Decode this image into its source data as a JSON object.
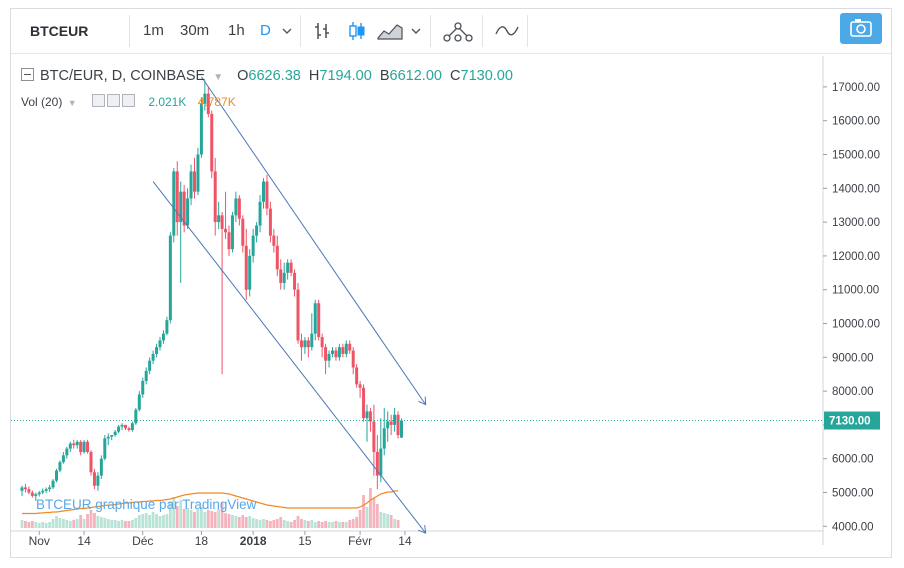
{
  "toolbar": {
    "symbol": "BTCEUR",
    "intervals": [
      "1m",
      "30m",
      "1h",
      "D"
    ],
    "active_interval": "D",
    "icons": [
      "chevron-down-icon",
      "bar-style-icon",
      "candle-style-icon",
      "area-style-icon",
      "chevron-down-icon",
      "indicators-icon",
      "compare-icon",
      "camera-icon"
    ]
  },
  "legend": {
    "title": "BTC/EUR, D, COINBASE",
    "open_label": "O",
    "open": "6626.38",
    "high_label": "H",
    "high": "7194.00",
    "low_label": "B",
    "low": "6612.00",
    "close_label": "C",
    "close": "7130.00"
  },
  "volume_legend": {
    "label": "Vol (20)",
    "v1": "2.021K",
    "v2": "4.787K",
    "v1_color": "#26a69a",
    "v2_color": "#f08a24"
  },
  "watermark": "BTCEUR graphique par TradingView",
  "colors": {
    "up": "#26a69a",
    "down": "#ef5366",
    "up_vol": "#b9e3d6",
    "down_vol": "#f6b3bd",
    "ma": "#f08a24",
    "channel": "#4a78b8",
    "price_tag": "#26a69a",
    "accent": "#2196f3"
  },
  "chart_data": {
    "type": "candlestick",
    "symbol": "BTC/EUR",
    "exchange": "COINBASE",
    "interval": "D",
    "y_axis": {
      "ticks": [
        4000,
        5000,
        6000,
        7000,
        8000,
        9000,
        10000,
        11000,
        12000,
        13000,
        14000,
        15000,
        16000,
        17000
      ],
      "tick_labels": [
        "4000.00",
        "5000.00",
        "6000.00",
        "7000.00",
        "8000.00",
        "9000.00",
        "10000.00",
        "11000.00",
        "12000.00",
        "13000.00",
        "14000.00",
        "15000.00",
        "16000.00",
        "17000.00"
      ],
      "range": [
        3950,
        17500
      ],
      "side": "right"
    },
    "x_axis": {
      "labels": [
        "Nov",
        "14",
        "Déc",
        "18",
        "2018",
        "15",
        "Févr",
        "14"
      ],
      "label_days": [
        5,
        18,
        35,
        52,
        67,
        82,
        98,
        111
      ],
      "range_days": [
        0,
        117
      ]
    },
    "last_price": 7130.0,
    "last_price_label": "7130.00",
    "candles": [
      {
        "o": 5050,
        "h": 5200,
        "l": 4900,
        "c": 5150
      },
      {
        "o": 5150,
        "h": 5250,
        "l": 5000,
        "c": 5100
      },
      {
        "o": 5100,
        "h": 5180,
        "l": 4950,
        "c": 5000
      },
      {
        "o": 5000,
        "h": 5060,
        "l": 4850,
        "c": 4900
      },
      {
        "o": 4900,
        "h": 5000,
        "l": 4750,
        "c": 4950
      },
      {
        "o": 4950,
        "h": 5050,
        "l": 4880,
        "c": 5000
      },
      {
        "o": 5000,
        "h": 5120,
        "l": 4950,
        "c": 5050
      },
      {
        "o": 5050,
        "h": 5150,
        "l": 4980,
        "c": 5100
      },
      {
        "o": 5100,
        "h": 5220,
        "l": 5020,
        "c": 5150
      },
      {
        "o": 5150,
        "h": 5400,
        "l": 5100,
        "c": 5350
      },
      {
        "o": 5350,
        "h": 5700,
        "l": 5300,
        "c": 5650
      },
      {
        "o": 5650,
        "h": 5950,
        "l": 5600,
        "c": 5900
      },
      {
        "o": 5900,
        "h": 6200,
        "l": 5850,
        "c": 6100
      },
      {
        "o": 6100,
        "h": 6350,
        "l": 6000,
        "c": 6300
      },
      {
        "o": 6300,
        "h": 6500,
        "l": 6200,
        "c": 6450
      },
      {
        "o": 6450,
        "h": 6560,
        "l": 6300,
        "c": 6400
      },
      {
        "o": 6400,
        "h": 6550,
        "l": 6300,
        "c": 6500
      },
      {
        "o": 6500,
        "h": 6550,
        "l": 6100,
        "c": 6200
      },
      {
        "o": 6200,
        "h": 6550,
        "l": 6150,
        "c": 6500
      },
      {
        "o": 6500,
        "h": 6560,
        "l": 6150,
        "c": 6200
      },
      {
        "o": 6200,
        "h": 6250,
        "l": 5500,
        "c": 5600
      },
      {
        "o": 5600,
        "h": 5700,
        "l": 5100,
        "c": 5200
      },
      {
        "o": 5200,
        "h": 5600,
        "l": 5050,
        "c": 5500
      },
      {
        "o": 5500,
        "h": 6100,
        "l": 5400,
        "c": 6000
      },
      {
        "o": 6000,
        "h": 6700,
        "l": 5950,
        "c": 6600
      },
      {
        "o": 6600,
        "h": 6750,
        "l": 6400,
        "c": 6650
      },
      {
        "o": 6650,
        "h": 6700,
        "l": 6550,
        "c": 6700
      },
      {
        "o": 6700,
        "h": 6850,
        "l": 6650,
        "c": 6800
      },
      {
        "o": 6800,
        "h": 7000,
        "l": 6750,
        "c": 6950
      },
      {
        "o": 6950,
        "h": 7050,
        "l": 6850,
        "c": 7000
      },
      {
        "o": 7000,
        "h": 7000,
        "l": 6850,
        "c": 6900
      },
      {
        "o": 6900,
        "h": 6950,
        "l": 6800,
        "c": 6850
      },
      {
        "o": 6850,
        "h": 7100,
        "l": 6800,
        "c": 7050
      },
      {
        "o": 7050,
        "h": 7500,
        "l": 7000,
        "c": 7450
      },
      {
        "o": 7450,
        "h": 8000,
        "l": 7400,
        "c": 7900
      },
      {
        "o": 7900,
        "h": 8400,
        "l": 7800,
        "c": 8300
      },
      {
        "o": 8300,
        "h": 8700,
        "l": 8200,
        "c": 8600
      },
      {
        "o": 8600,
        "h": 9000,
        "l": 8500,
        "c": 8900
      },
      {
        "o": 8900,
        "h": 9200,
        "l": 8800,
        "c": 9100
      },
      {
        "o": 9100,
        "h": 9400,
        "l": 9000,
        "c": 9300
      },
      {
        "o": 9300,
        "h": 9600,
        "l": 9200,
        "c": 9500
      },
      {
        "o": 9500,
        "h": 9800,
        "l": 9400,
        "c": 9700
      },
      {
        "o": 9700,
        "h": 10200,
        "l": 9650,
        "c": 10100
      },
      {
        "o": 10100,
        "h": 12700,
        "l": 10000,
        "c": 12600
      },
      {
        "o": 12600,
        "h": 14600,
        "l": 12400,
        "c": 14500
      },
      {
        "o": 14500,
        "h": 14800,
        "l": 12600,
        "c": 13000
      },
      {
        "o": 13000,
        "h": 14200,
        "l": 11200,
        "c": 13900
      },
      {
        "o": 13900,
        "h": 14100,
        "l": 12700,
        "c": 12900
      },
      {
        "o": 12900,
        "h": 14000,
        "l": 12800,
        "c": 13700
      },
      {
        "o": 13700,
        "h": 14700,
        "l": 13500,
        "c": 14500
      },
      {
        "o": 14500,
        "h": 14900,
        "l": 13700,
        "c": 13900
      },
      {
        "o": 13900,
        "h": 15200,
        "l": 13800,
        "c": 15000
      },
      {
        "o": 15000,
        "h": 16700,
        "l": 14900,
        "c": 16500
      },
      {
        "o": 16500,
        "h": 17194,
        "l": 16300,
        "c": 16800
      },
      {
        "o": 16800,
        "h": 17000,
        "l": 16100,
        "c": 16200
      },
      {
        "o": 16200,
        "h": 16300,
        "l": 14300,
        "c": 14500
      },
      {
        "o": 14500,
        "h": 14900,
        "l": 12600,
        "c": 13000
      },
      {
        "o": 13000,
        "h": 13600,
        "l": 12800,
        "c": 13200
      },
      {
        "o": 13200,
        "h": 13300,
        "l": 8500,
        "c": 12800
      },
      {
        "o": 12800,
        "h": 13900,
        "l": 12500,
        "c": 12700
      },
      {
        "o": 12700,
        "h": 12900,
        "l": 12000,
        "c": 12200
      },
      {
        "o": 12200,
        "h": 13300,
        "l": 12100,
        "c": 13200
      },
      {
        "o": 13200,
        "h": 13900,
        "l": 13000,
        "c": 13700
      },
      {
        "o": 13700,
        "h": 13800,
        "l": 12900,
        "c": 13100
      },
      {
        "o": 13100,
        "h": 13200,
        "l": 12100,
        "c": 12300
      },
      {
        "o": 12300,
        "h": 12800,
        "l": 10700,
        "c": 11000
      },
      {
        "o": 11000,
        "h": 12200,
        "l": 10800,
        "c": 12000
      },
      {
        "o": 12000,
        "h": 12800,
        "l": 11800,
        "c": 12600
      },
      {
        "o": 12600,
        "h": 13000,
        "l": 12400,
        "c": 12900
      },
      {
        "o": 12900,
        "h": 13800,
        "l": 12700,
        "c": 13600
      },
      {
        "o": 13600,
        "h": 14300,
        "l": 13400,
        "c": 14200
      },
      {
        "o": 14200,
        "h": 14400,
        "l": 13200,
        "c": 13400
      },
      {
        "o": 13400,
        "h": 13600,
        "l": 12400,
        "c": 12600
      },
      {
        "o": 12600,
        "h": 12800,
        "l": 12100,
        "c": 12300
      },
      {
        "o": 12300,
        "h": 12600,
        "l": 11400,
        "c": 11600
      },
      {
        "o": 11600,
        "h": 11900,
        "l": 11000,
        "c": 11200
      },
      {
        "o": 11200,
        "h": 11800,
        "l": 11000,
        "c": 11500
      },
      {
        "o": 11500,
        "h": 11900,
        "l": 11300,
        "c": 11800
      },
      {
        "o": 11800,
        "h": 11900,
        "l": 11400,
        "c": 11500
      },
      {
        "o": 11500,
        "h": 11600,
        "l": 10800,
        "c": 11000
      },
      {
        "o": 11000,
        "h": 11200,
        "l": 9400,
        "c": 9500
      },
      {
        "o": 9500,
        "h": 9700,
        "l": 8900,
        "c": 9300
      },
      {
        "o": 9300,
        "h": 9600,
        "l": 9100,
        "c": 9500
      },
      {
        "o": 9500,
        "h": 9600,
        "l": 9000,
        "c": 9300
      },
      {
        "o": 9300,
        "h": 10300,
        "l": 9200,
        "c": 9700
      },
      {
        "o": 9700,
        "h": 10700,
        "l": 9500,
        "c": 10600
      },
      {
        "o": 10600,
        "h": 10700,
        "l": 9500,
        "c": 9600
      },
      {
        "o": 9600,
        "h": 9700,
        "l": 9000,
        "c": 9300
      },
      {
        "o": 9300,
        "h": 9400,
        "l": 8500,
        "c": 8900
      },
      {
        "o": 8900,
        "h": 9200,
        "l": 8700,
        "c": 9100
      },
      {
        "o": 9100,
        "h": 9300,
        "l": 9000,
        "c": 9200
      },
      {
        "o": 9200,
        "h": 9300,
        "l": 8900,
        "c": 9000
      },
      {
        "o": 9000,
        "h": 9400,
        "l": 8900,
        "c": 9300
      },
      {
        "o": 9300,
        "h": 9400,
        "l": 9000,
        "c": 9100
      },
      {
        "o": 9100,
        "h": 9500,
        "l": 9000,
        "c": 9400
      },
      {
        "o": 9400,
        "h": 9500,
        "l": 9100,
        "c": 9200
      },
      {
        "o": 9200,
        "h": 9300,
        "l": 8500,
        "c": 8700
      },
      {
        "o": 8700,
        "h": 8800,
        "l": 8100,
        "c": 8200
      },
      {
        "o": 8200,
        "h": 8300,
        "l": 7800,
        "c": 8100
      },
      {
        "o": 8100,
        "h": 8200,
        "l": 7100,
        "c": 7200
      },
      {
        "o": 7200,
        "h": 7600,
        "l": 6500,
        "c": 7400
      },
      {
        "o": 7400,
        "h": 7500,
        "l": 6800,
        "c": 7100
      },
      {
        "o": 7100,
        "h": 7600,
        "l": 5500,
        "c": 6200
      },
      {
        "o": 6200,
        "h": 6700,
        "l": 5100,
        "c": 5500
      },
      {
        "o": 5500,
        "h": 7200,
        "l": 5300,
        "c": 6300
      },
      {
        "o": 6300,
        "h": 7500,
        "l": 6100,
        "c": 6900
      },
      {
        "o": 6900,
        "h": 7400,
        "l": 6500,
        "c": 7100
      },
      {
        "o": 7100,
        "h": 7300,
        "l": 6700,
        "c": 7000
      },
      {
        "o": 7000,
        "h": 7500,
        "l": 6800,
        "c": 7300
      },
      {
        "o": 7300,
        "h": 7400,
        "l": 6600,
        "c": 6700
      },
      {
        "o": 6626.38,
        "h": 7194,
        "l": 6612,
        "c": 7130
      }
    ],
    "volume": [
      0.8,
      0.7,
      0.6,
      0.7,
      0.6,
      0.5,
      0.6,
      0.5,
      0.6,
      0.9,
      1.2,
      1.0,
      0.9,
      0.8,
      0.7,
      0.8,
      0.9,
      1.3,
      0.9,
      1.4,
      1.8,
      1.5,
      1.2,
      1.1,
      1.0,
      0.9,
      0.8,
      0.8,
      0.7,
      0.8,
      0.7,
      0.7,
      0.8,
      1.0,
      1.3,
      1.4,
      1.5,
      1.3,
      1.6,
      1.4,
      1.2,
      1.3,
      1.4,
      2.6,
      3.1,
      2.2,
      2.8,
      1.9,
      2.0,
      1.8,
      1.6,
      1.9,
      2.1,
      1.6,
      1.8,
      1.7,
      1.6,
      1.9,
      2.6,
      1.5,
      1.4,
      1.3,
      1.2,
      1.1,
      1.3,
      1.1,
      1.2,
      1.0,
      0.9,
      0.8,
      0.9,
      0.8,
      0.7,
      0.8,
      0.9,
      1.1,
      0.8,
      0.7,
      0.6,
      0.8,
      1.2,
      0.9,
      0.8,
      0.7,
      0.8,
      0.6,
      0.7,
      0.6,
      0.7,
      0.6,
      0.6,
      0.7,
      0.6,
      0.6,
      0.6,
      0.8,
      0.9,
      1.1,
      1.8,
      3.3,
      2.1,
      4.0,
      3.0,
      2.4,
      1.6,
      1.5,
      1.4,
      1.3,
      0.9,
      0.8
    ],
    "volume_ma": [
      1.45,
      1.45,
      1.45,
      1.45,
      1.45,
      1.5,
      1.5,
      1.55,
      1.55,
      1.6,
      1.6,
      1.65,
      1.7,
      1.75,
      1.8,
      1.85,
      1.9,
      1.95,
      1.95,
      2.0,
      2.05,
      2.1,
      2.15,
      2.2,
      2.25,
      2.3,
      2.3,
      2.35,
      2.4,
      2.45,
      2.5,
      2.5,
      2.55,
      2.6,
      2.6,
      2.65,
      2.65,
      2.7,
      2.7,
      2.75,
      2.75,
      2.8,
      2.85,
      2.9,
      3.0,
      3.1,
      3.2,
      3.3,
      3.35,
      3.4,
      3.45,
      3.5,
      3.5,
      3.5,
      3.5,
      3.5,
      3.5,
      3.5,
      3.5,
      3.45,
      3.4,
      3.3,
      3.2,
      3.1,
      3.0,
      2.9,
      2.8,
      2.7,
      2.6,
      2.5,
      2.4,
      2.3,
      2.25,
      2.2,
      2.15,
      2.1,
      2.05,
      2.0,
      2.0,
      2.0,
      2.0,
      2.0,
      2.0,
      2.0,
      2.0,
      2.0,
      2.0,
      2.0,
      2.0,
      2.0,
      2.0,
      2.0,
      2.0,
      2.0,
      2.0,
      2.0,
      2.0,
      2.0,
      2.1,
      2.3,
      2.5,
      2.8,
      3.0,
      3.2,
      3.4,
      3.5,
      3.6,
      3.6,
      3.7,
      3.7
    ],
    "channel_lines": [
      {
        "name": "",
        "from": {
          "day": 38,
          "price": 14200
        },
        "to": {
          "day": 117,
          "price": 3800
        }
      },
      {
        "name": "",
        "from": {
          "day": 52,
          "price": 17300
        },
        "to": {
          "day": 117,
          "price": 7600
        }
      }
    ]
  }
}
